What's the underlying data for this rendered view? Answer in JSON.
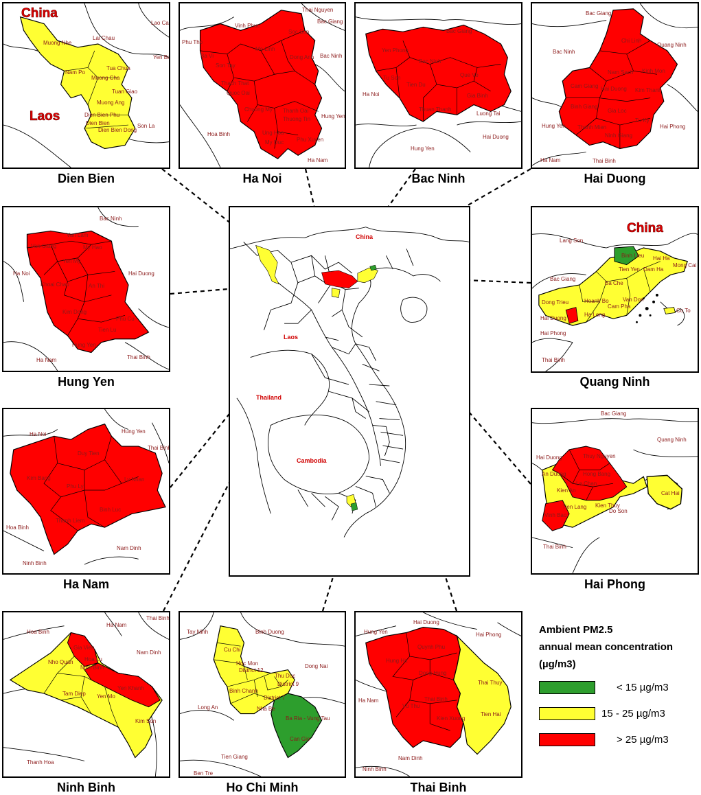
{
  "colors": {
    "green": "#2d9e2d",
    "yellow": "#ffff33",
    "red": "#ff0000",
    "border": "#000000",
    "label": "#8b1a1a"
  },
  "legend": {
    "title_line1": "Ambient PM2.5",
    "title_line2": "annual mean concentration",
    "title_line3": "(µg/m3)",
    "items": [
      {
        "label": "< 15 µg/m3",
        "color": "#2d9e2d"
      },
      {
        "label": "15 - 25 µg/m3",
        "color": "#ffff33"
      },
      {
        "label": "> 25 µg/m3",
        "color": "#ff0000"
      }
    ]
  },
  "center_map": {
    "labels": [
      "China",
      "Laos",
      "Thailand",
      "Cambodia"
    ]
  },
  "panels": {
    "dien_bien": {
      "caption": "Dien Bien",
      "big_labels": [
        "China",
        "Laos"
      ],
      "neighbors": [
        "Lai Chau",
        "Lao Cai",
        "Yen Bai",
        "Son La"
      ],
      "districts": [
        "Muong Nhe",
        "Nam Po",
        "Muong Cha",
        "Tua Chua",
        "Tuan Giao",
        "Muong Ang",
        "Dien Bien Phu",
        "Dien Bien",
        "Dien Bien Dong"
      ]
    },
    "ha_noi": {
      "caption": "Ha Noi",
      "neighbors": [
        "Vinh Phuc",
        "Thai Nguyen",
        "Bac Giang",
        "Bac Ninh",
        "Phu Tho",
        "Hung Yen",
        "Hoa Binh",
        "Ha Nam"
      ],
      "districts": [
        "Soc Son",
        "Me Linh",
        "Dong Anh",
        "Ba Vi",
        "Son Tay",
        "Thach That",
        "Quoc Oai",
        "Chuong My",
        "Thanh Oai",
        "Thuong Tin",
        "Ung Hoa",
        "My Duc",
        "Phu Xuyen"
      ]
    },
    "bac_ninh": {
      "caption": "Bac Ninh",
      "neighbors": [
        "Bac Giang",
        "Ha Noi",
        "Hung Yen",
        "Hai Duong"
      ],
      "districts": [
        "Yen Phong",
        "Tu Son",
        "Que Vo",
        "Tien Du",
        "Thuan Thanh",
        "Gia Binh",
        "Luong Tai",
        "Bac Ninh"
      ]
    },
    "hai_duong": {
      "caption": "Hai Duong",
      "neighbors": [
        "Bac Giang",
        "Quang Ninh",
        "Bac Ninh",
        "Hung Yen",
        "Hai Phong",
        "Ha Nam",
        "Thai Binh"
      ],
      "districts": [
        "Chi Linh",
        "Kinh Mon",
        "Nam Sach",
        "Cam Giang",
        "Hai Duong",
        "Kim Thanh",
        "Binh Giang",
        "Gia Loc",
        "Tu Ky",
        "Thanh Mien",
        "Ninh Giang"
      ]
    },
    "hung_yen": {
      "caption": "Hung Yen",
      "neighbors": [
        "Bac Ninh",
        "Ha Noi",
        "Hai Duong",
        "Ha Nam",
        "Thai Binh"
      ],
      "districts": [
        "Van Lam",
        "Yen My",
        "My Hao",
        "Van Giang",
        "Khoai Chau",
        "An Thi",
        "Kim Dong",
        "Phu Cu",
        "Tien Lu",
        "Hung Yen"
      ]
    },
    "quang_ninh": {
      "caption": "Quang Ninh",
      "big_labels": [
        "China"
      ],
      "neighbors": [
        "Lang Son",
        "Bac Giang",
        "Hai Duong",
        "Hai Phong",
        "Thai Binh"
      ],
      "districts": [
        "Binh Lieu",
        "Hai Ha",
        "Mong Cai",
        "Tien Yen",
        "Dam Ha",
        "Ba Che",
        "Dong Trieu",
        "Hoanh Bo",
        "Van Don",
        "Cam Pha",
        "Ha Long",
        "Co To"
      ]
    },
    "ha_nam": {
      "caption": "Ha Nam",
      "neighbors": [
        "Ha Noi",
        "Hung Yen",
        "Thai Binh",
        "Hoa Binh",
        "Nam Dinh",
        "Ninh Binh"
      ],
      "districts": [
        "Duy Tien",
        "Kim Bang",
        "Phu Ly",
        "Ly Nhan",
        "Binh Luc",
        "Thanh Liem"
      ]
    },
    "hai_phong": {
      "caption": "Hai Phong",
      "neighbors": [
        "Bac Giang",
        "Quang Ninh",
        "Hai Duong",
        "Thai Binh"
      ],
      "districts": [
        "Thuy Nguyen",
        "An Duong",
        "Hong Bang",
        "Le Chan",
        "Kien An",
        "Tien Lang",
        "Kien Thuy",
        "Do Son",
        "Vinh Bao",
        "Cat Hai"
      ]
    },
    "ninh_binh": {
      "caption": "Ninh Binh",
      "neighbors": [
        "Hoa Binh",
        "Ha Nam",
        "Thai Binh",
        "Nam Dinh",
        "Thanh Hoa"
      ],
      "districts": [
        "Nho Quan",
        "Gia Vien",
        "Hoa Lu",
        "Ninh Binh",
        "Tam Diep",
        "Yen Mo",
        "Yen Khanh",
        "Kim Son"
      ]
    },
    "ho_chi_minh": {
      "caption": "Ho Chi Minh",
      "neighbors": [
        "Tay Ninh",
        "Binh Duong",
        "Dong Nai",
        "Long An",
        "Ba Ria - Vung Tau",
        "Tien Giang",
        "Ben Tre"
      ],
      "districts": [
        "Cu Chi",
        "Hoc Mon",
        "District 12",
        "Thu Duc",
        "Binh Chanh",
        "District 9",
        "District 7",
        "Nha Be",
        "Can Gio"
      ]
    },
    "thai_binh": {
      "caption": "Thai Binh",
      "neighbors": [
        "Hung Yen",
        "Hai Duong",
        "Hai Phong",
        "Ha Nam",
        "Nam Dinh",
        "Ninh Binh"
      ],
      "districts": [
        "Quynh Phu",
        "Hung Ha",
        "Dong Hung",
        "Thai Thuy",
        "Vu Thu",
        "Thai Binh",
        "Kien Xuong",
        "Tien Hai"
      ]
    }
  }
}
